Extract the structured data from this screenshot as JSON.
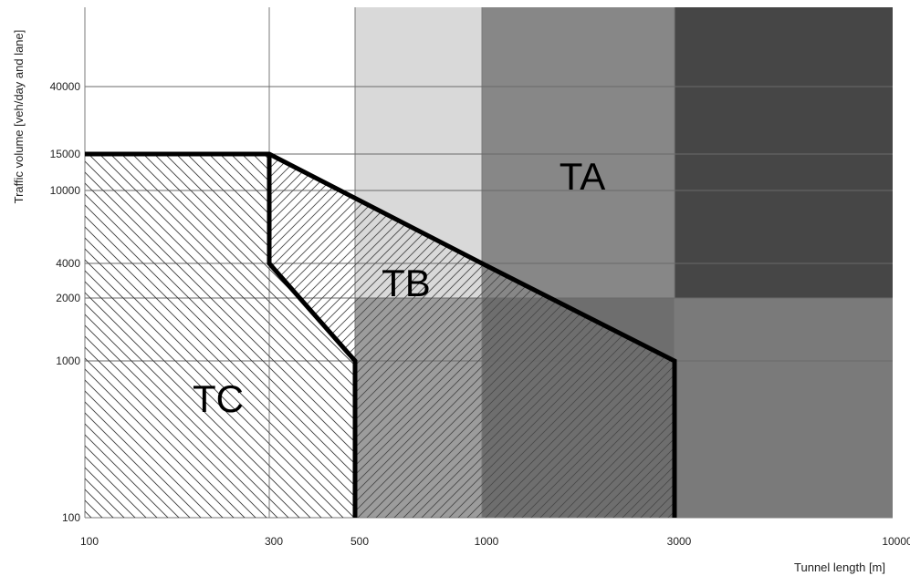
{
  "chart_data": {
    "type": "area",
    "title": "",
    "xlabel": "Tunnel length [m]",
    "ylabel": "Traffic volume [veh/day and lane]",
    "x_scale": "categorical-log",
    "x_ticks": [
      "100",
      "300",
      "500",
      "1000",
      "3000",
      "10000"
    ],
    "y_ticks": [
      "100",
      "1000",
      "2000",
      "4000",
      "10000",
      "15000",
      "40000"
    ],
    "xlim": [
      100,
      10000
    ],
    "ylim_top_label": "40000",
    "background_bands": [
      {
        "from": "100",
        "to": "500",
        "shade": "#ffffff"
      },
      {
        "from": "500",
        "to": "1000",
        "shade": "#d9d9d9",
        "lower_below_2000": "#9c9c9c"
      },
      {
        "from": "1000",
        "to": "3000",
        "shade": "#878787",
        "lower_below_2000": "#6e6e6e"
      },
      {
        "from": "3000",
        "to": "10000",
        "shade": "#464646",
        "lower_below_2000": "#7a7a7a"
      }
    ],
    "regions": [
      {
        "name": "TC",
        "hatch": "backslash",
        "boundary": [
          {
            "x": "100",
            "y": "100"
          },
          {
            "x": "100",
            "y": "15000"
          },
          {
            "x": "300",
            "y": "15000"
          },
          {
            "x": "300",
            "y": "4000"
          },
          {
            "x": "500",
            "y": "1000"
          },
          {
            "x": "500",
            "y": "100"
          }
        ]
      },
      {
        "name": "TB",
        "hatch": "slash",
        "boundary": [
          {
            "x": "300",
            "y": "15000"
          },
          {
            "x": "1000",
            "y": "4000"
          },
          {
            "x": "3000",
            "y": "1000"
          },
          {
            "x": "3000",
            "y": "100"
          },
          {
            "x": "500",
            "y": "100"
          },
          {
            "x": "500",
            "y": "1000"
          },
          {
            "x": "300",
            "y": "4000"
          }
        ]
      },
      {
        "name": "TA",
        "hatch": "none",
        "label_at": {
          "x": "1000-3000",
          "y": "15000-10000"
        }
      }
    ],
    "outline": [
      {
        "x": "100",
        "y": "15000"
      },
      {
        "x": "300",
        "y": "15000"
      },
      {
        "x": "1000",
        "y": "4000"
      },
      {
        "x": "3000",
        "y": "1000"
      },
      {
        "x": "3000",
        "y": "100"
      }
    ],
    "grid": true
  }
}
